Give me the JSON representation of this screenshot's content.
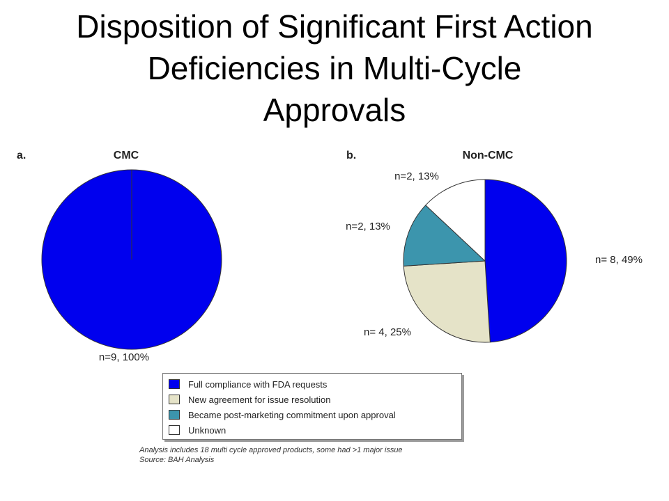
{
  "title": {
    "line1": "Disposition of Significant First Action",
    "line2": "Deficiencies in Multi-Cycle",
    "line3": "Approvals"
  },
  "colors": {
    "full_compliance": "#0000ee",
    "new_agreement": "#e5e3c8",
    "post_marketing": "#3c95ad",
    "unknown": "#ffffff"
  },
  "legend": {
    "items": [
      {
        "label": "Full compliance with FDA requests",
        "color": "#0000ee"
      },
      {
        "label": "New agreement for issue resolution",
        "color": "#e5e3c8"
      },
      {
        "label": "Became post-marketing commitment upon approval",
        "color": "#3c95ad"
      },
      {
        "label": "Unknown",
        "color": "#ffffff"
      }
    ]
  },
  "footnote": {
    "line1": "Analysis includes 18 multi cycle approved products, some had >1 major issue",
    "line2": "Source: BAH Analysis"
  },
  "chart_data": [
    {
      "type": "pie",
      "panel": "a.",
      "title": "CMC",
      "slices": [
        {
          "category": "Full compliance with FDA requests",
          "n": 9,
          "percent": 100,
          "label": "n=9, 100%",
          "color": "#0000ee"
        }
      ]
    },
    {
      "type": "pie",
      "panel": "b.",
      "title": "Non-CMC",
      "slices": [
        {
          "category": "Full compliance with FDA requests",
          "n": 8,
          "percent": 49,
          "label": "n= 8, 49%",
          "color": "#0000ee"
        },
        {
          "category": "New agreement for issue resolution",
          "n": 4,
          "percent": 25,
          "label": "n= 4, 25%",
          "color": "#e5e3c8"
        },
        {
          "category": "Became post-marketing commitment upon approval",
          "n": 2,
          "percent": 13,
          "label": "n=2, 13%",
          "color": "#3c95ad"
        },
        {
          "category": "Unknown",
          "n": 2,
          "percent": 13,
          "label": "n=2, 13%",
          "color": "#ffffff"
        }
      ]
    }
  ]
}
